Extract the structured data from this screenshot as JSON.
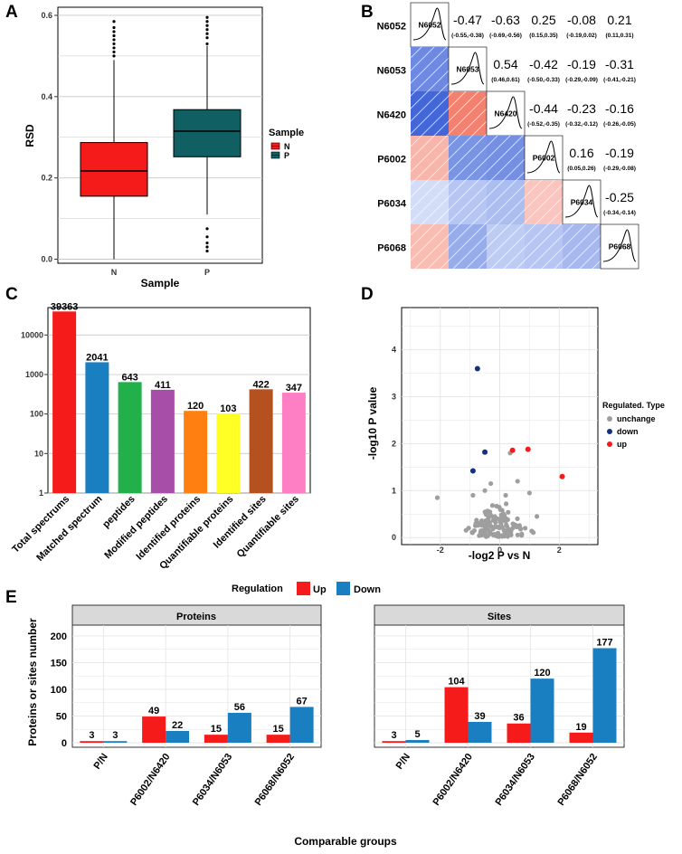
{
  "panels": {
    "a": "A",
    "b": "B",
    "c": "C",
    "d": "D",
    "e": "E"
  },
  "colors": {
    "red": "#f61b1b",
    "teal": "#0f5f63",
    "blue": "#1a7fc0",
    "green": "#22b04b",
    "purple": "#a74fa8",
    "orange": "#ff7f10",
    "yellow": "#ffff26",
    "brown": "#b5501f",
    "pink": "#ff7fc4",
    "gray": "#9e9e9e",
    "navy": "#14307f"
  },
  "chart_data": [
    {
      "id": "A",
      "type": "box",
      "xlabel": "Sample",
      "ylabel": "RSD",
      "ylim": [
        -0.01,
        0.62
      ],
      "yticks": [
        "0.0",
        "0.2",
        "0.4",
        "0.6"
      ],
      "legend_title": "Sample",
      "groups": [
        {
          "name": "N",
          "whisker_low": 0.0,
          "q1": 0.155,
          "median": 0.217,
          "q3": 0.287,
          "whisker_high": 0.49,
          "outliers": [
            0.5,
            0.51,
            0.52,
            0.53,
            0.54,
            0.55,
            0.56,
            0.57,
            0.585
          ]
        },
        {
          "name": "P",
          "whisker_low": 0.11,
          "q1": 0.252,
          "median": 0.315,
          "q3": 0.368,
          "whisker_high": 0.525,
          "outliers": [
            0.53,
            0.545,
            0.555,
            0.565,
            0.575,
            0.585,
            0.595,
            0.075,
            0.055,
            0.04,
            0.03,
            0.02
          ]
        }
      ]
    },
    {
      "id": "B",
      "type": "correlogram",
      "labels": [
        "N6052",
        "N6053",
        "N6420",
        "P6002",
        "P6034",
        "P6068"
      ],
      "upper": [
        {
          "row": 0,
          "col": 1,
          "r": "-0.47",
          "ci": "(-0.55,-0.38)"
        },
        {
          "row": 0,
          "col": 2,
          "r": "-0.63",
          "ci": "(-0.69,-0.56)"
        },
        {
          "row": 0,
          "col": 3,
          "r": "0.25",
          "ci": "(0.15,0.35)"
        },
        {
          "row": 0,
          "col": 4,
          "r": "-0.08",
          "ci": "(-0.19,0.02)"
        },
        {
          "row": 0,
          "col": 5,
          "r": "0.21",
          "ci": "(0.11,0.31)"
        },
        {
          "row": 1,
          "col": 2,
          "r": "0.54",
          "ci": "(0.46,0.61)"
        },
        {
          "row": 1,
          "col": 3,
          "r": "-0.42",
          "ci": "(-0.50,-0.33)"
        },
        {
          "row": 1,
          "col": 4,
          "r": "-0.19",
          "ci": "(-0.29,-0.09)"
        },
        {
          "row": 1,
          "col": 5,
          "r": "-0.31",
          "ci": "(-0.41,-0.21)"
        },
        {
          "row": 2,
          "col": 3,
          "r": "-0.44",
          "ci": "(-0.52,-0.35)"
        },
        {
          "row": 2,
          "col": 4,
          "r": "-0.23",
          "ci": "(-0.32,-0.12)"
        },
        {
          "row": 2,
          "col": 5,
          "r": "-0.16",
          "ci": "(-0.26,-0.05)"
        },
        {
          "row": 3,
          "col": 4,
          "r": "0.16",
          "ci": "(0.05,0.26)"
        },
        {
          "row": 3,
          "col": 5,
          "r": "-0.19",
          "ci": "(-0.29,-0.08)"
        },
        {
          "row": 4,
          "col": 5,
          "r": "-0.25",
          "ci": "(-0.34,-0.14)"
        }
      ]
    },
    {
      "id": "C",
      "type": "bar",
      "scale": "log10",
      "categories": [
        "Total spectrums",
        "Matched spectrum",
        "peptides",
        "Modified peptides",
        "Identified proteins",
        "Quantifiable proteins",
        "Identified sites",
        "Quantifiable sites"
      ],
      "values": [
        39363,
        2041,
        643,
        411,
        120,
        103,
        422,
        347
      ],
      "value_labels": [
        "39363",
        "2041",
        "643",
        "411",
        "120",
        "103",
        "422",
        "347"
      ],
      "ylim": [
        1,
        40000
      ],
      "yticks": [
        "1",
        "10",
        "100",
        "1000",
        "10000"
      ]
    },
    {
      "id": "D",
      "type": "scatter",
      "xlabel": "-log2 P vs N",
      "ylabel": "-log10 P value",
      "xlim": [
        -3.3,
        3.3
      ],
      "ylim": [
        -0.15,
        4.9
      ],
      "xticks": [
        "-2",
        "0",
        "2"
      ],
      "yticks": [
        "0",
        "1",
        "2",
        "3",
        "4"
      ],
      "legend_title": "Regulated. Type",
      "legend": [
        "unchange",
        "down",
        "up"
      ],
      "points_down": [
        [
          -0.75,
          3.6
        ],
        [
          -0.5,
          1.82
        ],
        [
          -0.9,
          1.42
        ]
      ],
      "points_up": [
        [
          0.43,
          1.86
        ],
        [
          0.95,
          1.88
        ],
        [
          2.1,
          1.3
        ]
      ]
    },
    {
      "id": "E",
      "type": "grouped_bar",
      "legend_title": "Regulation",
      "legend": [
        "Up",
        "Down"
      ],
      "xlabel": "Comparable groups",
      "ylabel": "Proteins or sites number",
      "categories": [
        "P/N",
        "P6002/N6420",
        "P6034/N6053",
        "P6068/N6052"
      ],
      "facets": [
        {
          "title": "Proteins",
          "ylim": [
            0,
            210
          ],
          "yticks": [
            "0",
            "50",
            "100",
            "150",
            "200"
          ],
          "series": [
            {
              "name": "Up",
              "values": [
                3,
                49,
                15,
                15
              ]
            },
            {
              "name": "Down",
              "values": [
                3,
                22,
                56,
                67
              ]
            }
          ]
        },
        {
          "title": "Sites",
          "ylim": [
            0,
            210
          ],
          "series": [
            {
              "name": "Up",
              "values": [
                3,
                104,
                36,
                19
              ]
            },
            {
              "name": "Down",
              "values": [
                5,
                39,
                120,
                177
              ]
            }
          ]
        }
      ]
    }
  ]
}
